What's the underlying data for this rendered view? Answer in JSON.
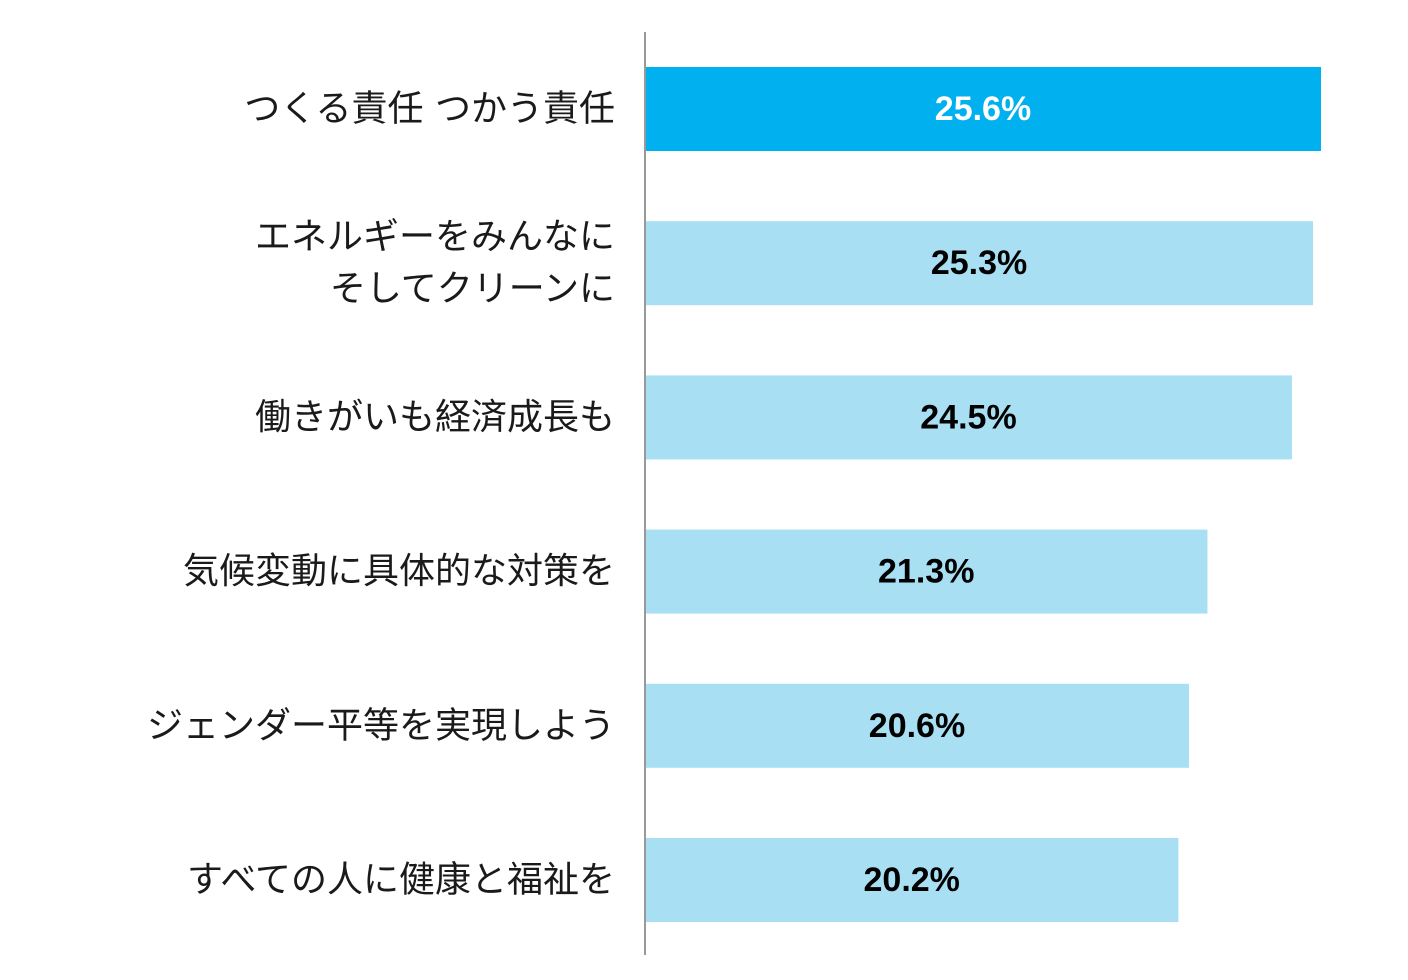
{
  "chart_data": {
    "type": "bar",
    "orientation": "horizontal",
    "categories": [
      [
        "つくる責任 つかう責任"
      ],
      [
        "エネルギーをみんなに",
        "そしてクリーンに"
      ],
      [
        "働きがいも経済成長も"
      ],
      [
        "気候変動に具体的な対策を"
      ],
      [
        "ジェンダー平等を実現しよう"
      ],
      [
        "すべての人に健康と福祉を"
      ]
    ],
    "values": [
      25.6,
      25.3,
      24.5,
      21.3,
      20.6,
      20.2
    ],
    "value_labels": [
      "25.6%",
      "25.3%",
      "24.5%",
      "21.3%",
      "20.6%",
      "20.2%"
    ],
    "unit": "%",
    "xlim": [
      0,
      25.6
    ],
    "grid": false,
    "title": "",
    "xlabel": "",
    "ylabel": "",
    "highlight_index": 0,
    "colors": {
      "highlight_bar": "#00b0ef",
      "bar": "#a8dff3",
      "highlight_label": "#ffffff",
      "label": "#000000",
      "category_text": "#1a1a1a",
      "axis": "#999999"
    }
  }
}
